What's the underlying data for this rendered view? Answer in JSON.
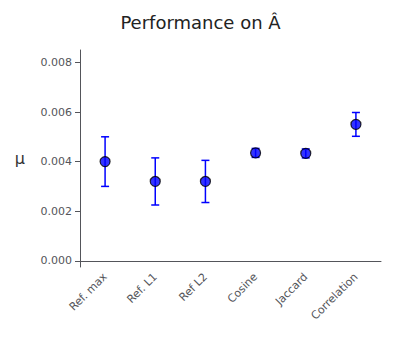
{
  "chart_data": {
    "type": "scatter",
    "title": "Performance on Â",
    "ylabel": "μ",
    "categories": [
      "Ref. max",
      "Ref. L1",
      "Ref L2",
      "Cosine",
      "Jaccard",
      "Correlation"
    ],
    "values": [
      0.004,
      0.0032,
      0.0032,
      0.00435,
      0.00433,
      0.0055
    ],
    "errors": [
      0.001,
      0.00095,
      0.00085,
      0.00018,
      0.00018,
      0.00048
    ],
    "color": "#0000ff",
    "marker": "circle",
    "ylim": [
      -0.00025,
      0.0085
    ],
    "yticks": [
      {
        "value": 0,
        "label": "0.000"
      },
      {
        "value": 0.002,
        "label": "0.002"
      },
      {
        "value": 0.004,
        "label": "0.004"
      },
      {
        "value": 0.006,
        "label": "0.006"
      },
      {
        "value": 0.008,
        "label": "0.008"
      }
    ],
    "grid": false
  }
}
